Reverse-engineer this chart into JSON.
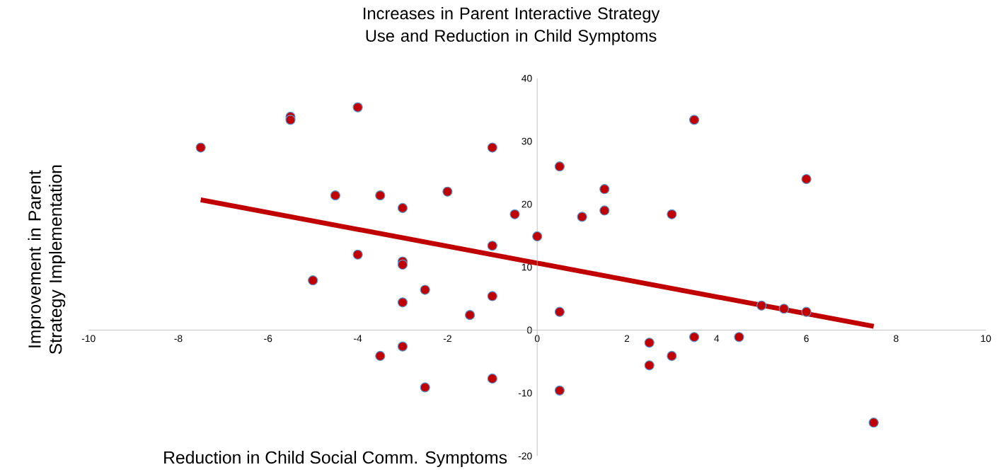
{
  "chart_data": {
    "type": "scatter",
    "title": "Increases in Parent Interactive Strategy Use and Reduction in Child Symptoms",
    "xlabel": "Reduction in Child Social Comm. Symptoms",
    "ylabel": "Improvement in Parent Strategy Implementation",
    "xlim": [
      -10,
      10
    ],
    "ylim": [
      -20,
      40
    ],
    "xticks": [
      -10,
      -8,
      -6,
      -4,
      -2,
      0,
      2,
      4,
      6,
      8,
      10
    ],
    "yticks": [
      -20,
      -10,
      0,
      10,
      20,
      30,
      40
    ],
    "grid": false,
    "marker": "circle",
    "series": [
      {
        "color": "#c00000",
        "x": [
          -7.5,
          -5.5,
          -5.5,
          -4,
          -4.5,
          -3.5,
          -3,
          -2,
          -1,
          -0.5,
          0,
          0.5,
          1,
          1.5,
          1.5,
          3,
          3.5,
          6,
          -4,
          -3,
          -3,
          -5,
          -2.5,
          -3,
          -1,
          -1,
          -1.5,
          0.5,
          5,
          5.5,
          6,
          -3,
          -3.5,
          -2.5,
          -1,
          0.5,
          2.5,
          2.5,
          3,
          3.5,
          4.5,
          7.5
        ],
        "values": [
          29.0,
          33.9,
          33.4,
          35.4,
          21.4,
          21.4,
          19.4,
          22.0,
          29.0,
          18.4,
          14.9,
          26.0,
          18.0,
          22.4,
          19.0,
          18.4,
          33.4,
          24.0,
          12.0,
          10.9,
          10.4,
          7.9,
          6.4,
          4.4,
          13.4,
          5.4,
          2.4,
          2.9,
          3.9,
          3.4,
          2.9,
          -2.6,
          -4.1,
          -9.1,
          -7.7,
          -9.6,
          -2.0,
          -5.6,
          -4.1,
          -1.1,
          -1.1,
          -14.7
        ]
      },
      {
        "type": "line",
        "color": "#c00000",
        "marker": "none",
        "x": [
          -7.5,
          7.5
        ],
        "values": [
          20.7,
          0.6
        ]
      }
    ]
  }
}
